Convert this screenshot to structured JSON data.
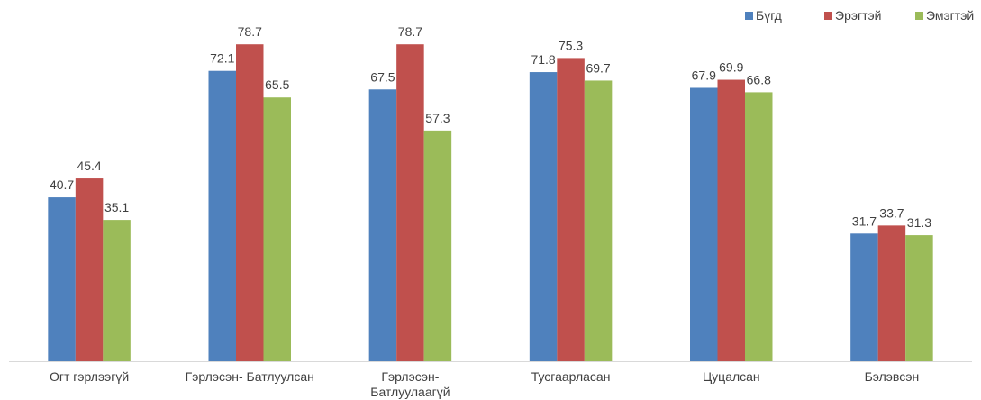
{
  "chart_data": {
    "type": "bar",
    "title": "",
    "xlabel": "",
    "ylabel": "",
    "ylim": [
      0,
      80
    ],
    "grid": false,
    "legend_position": "top-right",
    "categories": [
      "Огт гэрлээгүй",
      "Гэрлэсэн- Батлуулсан",
      "Гэрлэсэн- Батлуулаагүй",
      "Тусгаарласан",
      "Цуцалсан",
      "Бэлэвсэн"
    ],
    "series": [
      {
        "name": "Бүгд",
        "color": "#4F81BD",
        "values": [
          40.7,
          72.1,
          67.5,
          71.8,
          67.9,
          31.7
        ]
      },
      {
        "name": "Эрэгтэй",
        "color": "#C0504D",
        "values": [
          45.4,
          78.7,
          78.7,
          75.3,
          69.9,
          33.7
        ]
      },
      {
        "name": "Эмэгтэй",
        "color": "#9BBB59",
        "values": [
          35.1,
          65.5,
          57.3,
          69.7,
          66.8,
          31.3
        ]
      }
    ]
  }
}
